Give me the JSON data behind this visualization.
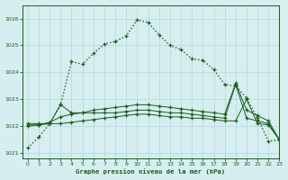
{
  "title": "Graphe pression niveau de la mer (hPa)",
  "background_color": "#d6eef0",
  "grid_color": "#b0d8dc",
  "line_color": "#1a5c1a",
  "xlim": [
    -0.5,
    23
  ],
  "ylim": [
    1020.8,
    1026.5
  ],
  "yticks": [
    1021,
    1022,
    1023,
    1024,
    1025,
    1026
  ],
  "xticks": [
    0,
    1,
    2,
    3,
    4,
    5,
    6,
    7,
    8,
    9,
    10,
    11,
    12,
    13,
    14,
    15,
    16,
    17,
    18,
    19,
    20,
    21,
    22,
    23
  ],
  "main_y": [
    1021.2,
    1021.6,
    1022.1,
    1022.8,
    1024.4,
    1024.3,
    1024.7,
    1025.05,
    1025.15,
    1025.35,
    1025.95,
    1025.85,
    1025.4,
    1025.0,
    1024.85,
    1024.5,
    1024.45,
    1024.1,
    1023.55,
    1023.5,
    1023.05,
    1022.3,
    1021.45,
    1021.5
  ],
  "line2_y": [
    1022.1,
    1022.1,
    1022.1,
    1022.8,
    1022.5,
    1022.5,
    1022.5,
    1022.5,
    1022.5,
    1022.55,
    1022.6,
    1022.6,
    1022.55,
    1022.5,
    1022.5,
    1022.45,
    1022.4,
    1022.35,
    1022.3,
    1023.55,
    1022.3,
    1022.2,
    1022.1,
    1021.5
  ],
  "line3_y": [
    1022.05,
    1022.05,
    1022.15,
    1022.35,
    1022.45,
    1022.5,
    1022.6,
    1022.65,
    1022.7,
    1022.75,
    1022.8,
    1022.8,
    1022.75,
    1022.7,
    1022.65,
    1022.6,
    1022.55,
    1022.5,
    1022.45,
    1023.6,
    1022.6,
    1022.4,
    1022.2,
    1021.5
  ],
  "line4_y": [
    1022.0,
    1022.05,
    1022.1,
    1022.1,
    1022.15,
    1022.2,
    1022.25,
    1022.3,
    1022.35,
    1022.4,
    1022.45,
    1022.45,
    1022.4,
    1022.35,
    1022.35,
    1022.3,
    1022.3,
    1022.25,
    1022.2,
    1022.2,
    1023.0,
    1022.1,
    1022.05,
    1021.5
  ]
}
